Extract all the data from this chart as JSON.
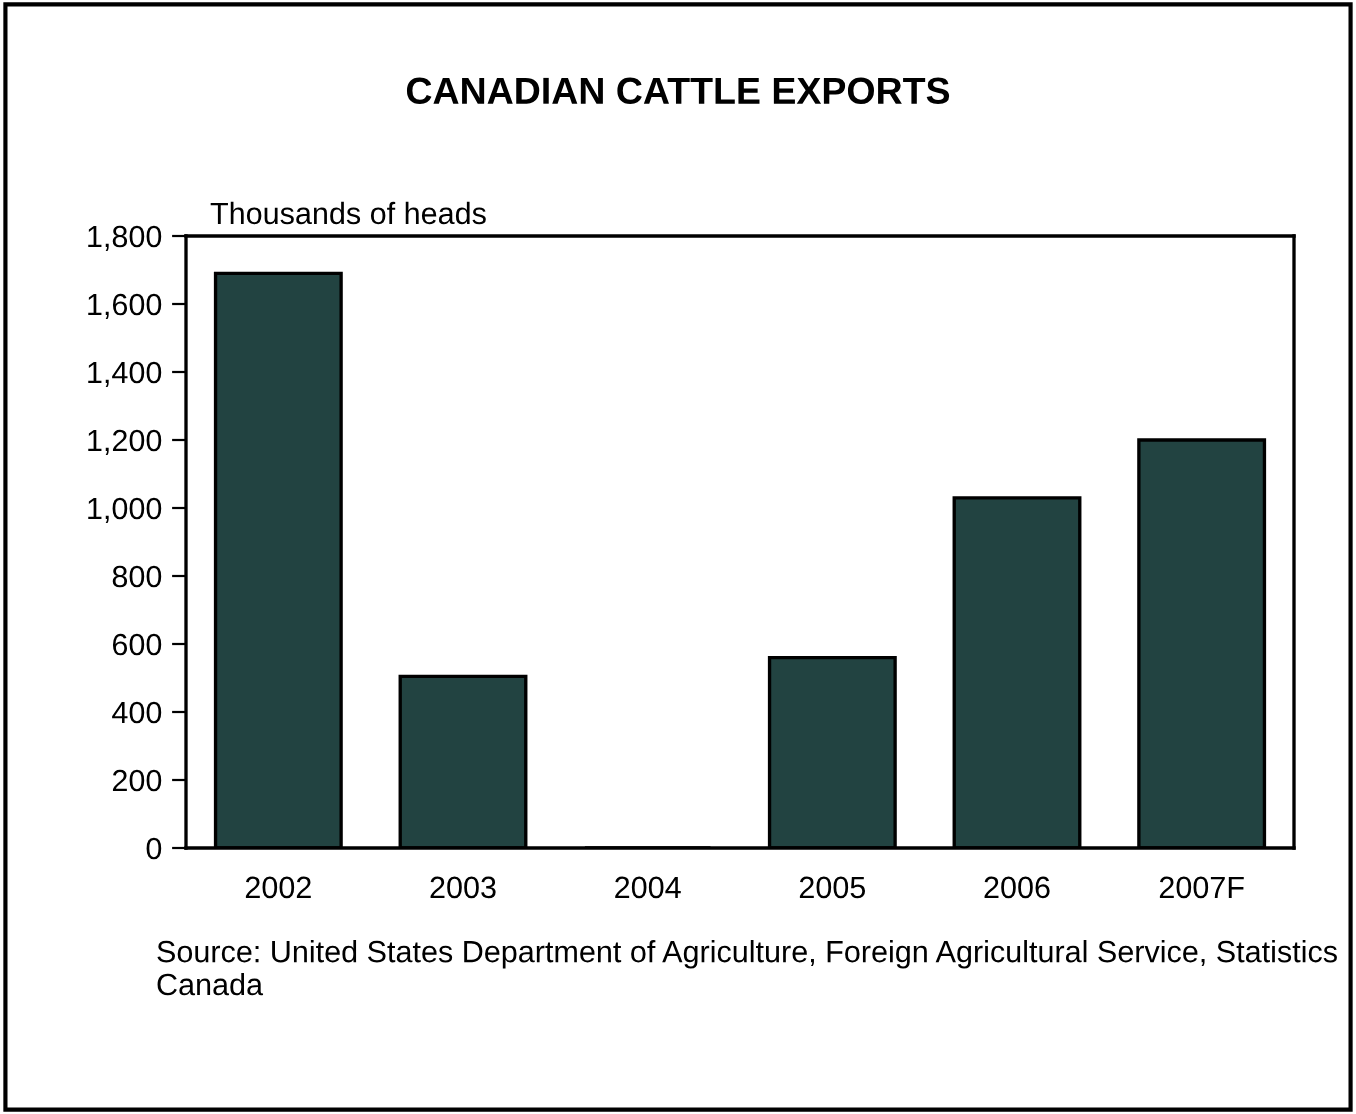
{
  "chart_data": {
    "type": "bar",
    "title": "CANADIAN CATTLE EXPORTS",
    "ylabel": "Thousands of heads",
    "categories": [
      "2002",
      "2003",
      "2004",
      "2005",
      "2006",
      "2007F"
    ],
    "values": [
      1690,
      505,
      0,
      560,
      1030,
      1200
    ],
    "color": "#224341",
    "ylim": [
      0,
      1800
    ],
    "yticks": [
      {
        "value": 0,
        "label": "0"
      },
      {
        "value": 200,
        "label": "200"
      },
      {
        "value": 400,
        "label": "400"
      },
      {
        "value": 600,
        "label": "600"
      },
      {
        "value": 800,
        "label": "800"
      },
      {
        "value": 1000,
        "label": "1,000"
      },
      {
        "value": 1200,
        "label": "1,200"
      },
      {
        "value": 1400,
        "label": "1,400"
      },
      {
        "value": 1600,
        "label": "1,600"
      },
      {
        "value": 1800,
        "label": "1,800"
      }
    ],
    "grid": false,
    "legend": false,
    "annotations": [
      "Source: United States Department of Agriculture, Foreign Agricultural Service, Statistics Canada"
    ]
  }
}
